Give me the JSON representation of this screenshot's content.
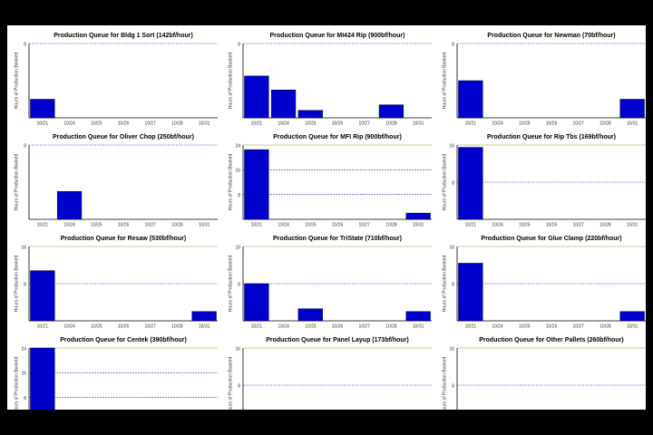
{
  "chart_data": [
    {
      "type": "bar",
      "title": "Production Queue for Bldg 1 Sort (142bf/hour)",
      "y_label": "Hours of Production Booked",
      "categories": [
        "10/21",
        "10/24",
        "10/25",
        "10/26",
        "10/27",
        "10/28",
        "10/31"
      ],
      "values": [
        2,
        0,
        0,
        0,
        0,
        0,
        0
      ],
      "color": "#0000cc",
      "ylim": [
        0,
        8
      ],
      "yticks": [
        8
      ]
    },
    {
      "type": "bar",
      "title": "Production Queue for MI424 Rip (900bf/hour)",
      "y_label": "Hours of Production Booked",
      "categories": [
        "10/21",
        "10/24",
        "10/25",
        "10/26",
        "10/27",
        "10/28",
        "10/31"
      ],
      "values": [
        4.5,
        3,
        0.8,
        0,
        0,
        1.4,
        0
      ],
      "color": "#0000cc",
      "ylim": [
        0,
        8
      ],
      "yticks": [
        8
      ]
    },
    {
      "type": "bar",
      "title": "Production Queue for Newman (70bf/hour)",
      "y_label": "Hours of Production Booked",
      "categories": [
        "10/21",
        "10/24",
        "10/25",
        "10/26",
        "10/27",
        "10/28",
        "10/31"
      ],
      "values": [
        4,
        0,
        0,
        0,
        0,
        0,
        2
      ],
      "color": "#0000cc",
      "ylim": [
        0,
        8
      ],
      "yticks": [
        8
      ]
    },
    {
      "type": "bar",
      "title": "Production Queue for Oliver Chop (250bf/hour)",
      "y_label": "Hours of Production Booked",
      "categories": [
        "10/21",
        "10/24",
        "10/25",
        "10/26",
        "10/27",
        "10/28",
        "10/31"
      ],
      "values": [
        0,
        3,
        0,
        0,
        0,
        0,
        0
      ],
      "color": "#0000cc",
      "ylim": [
        0,
        8
      ],
      "yticks": [
        8
      ]
    },
    {
      "type": "bar",
      "title": "Production Queue for MFI Rip (900bf/hour)",
      "y_label": "Hours of Production Booked",
      "categories": [
        "10/21",
        "10/24",
        "10/25",
        "10/26",
        "10/27",
        "10/28",
        "10/31"
      ],
      "values": [
        22.5,
        0,
        0,
        0,
        0,
        0,
        2
      ],
      "color": "#0000cc",
      "ylim": [
        0,
        24
      ],
      "yticks": [
        24,
        16,
        8
      ]
    },
    {
      "type": "bar",
      "title": "Production Queue for Rip Tbs (169bf/hour)",
      "y_label": "Hours of Production Booked",
      "categories": [
        "10/21",
        "10/24",
        "10/25",
        "10/26",
        "10/27",
        "10/28",
        "10/31"
      ],
      "values": [
        15.5,
        0,
        0,
        0,
        0,
        0,
        0
      ],
      "color": "#0000cc",
      "ylim": [
        0,
        16
      ],
      "yticks": [
        16,
        8
      ]
    },
    {
      "type": "bar",
      "title": "Production Queue for Resaw (530bf/hour)",
      "y_label": "Hours of Production Booked",
      "categories": [
        "10/21",
        "10/24",
        "10/25",
        "10/26",
        "10/27",
        "10/28",
        "10/31"
      ],
      "values": [
        10.8,
        0,
        0,
        0,
        0,
        0,
        2
      ],
      "color": "#0000cc",
      "ylim": [
        0,
        16
      ],
      "yticks": [
        16,
        8
      ]
    },
    {
      "type": "bar",
      "title": "Production Queue for TriState (710bf/hour)",
      "y_label": "Hours of Production Booked",
      "categories": [
        "10/21",
        "10/24",
        "10/25",
        "10/26",
        "10/27",
        "10/28",
        "10/31"
      ],
      "values": [
        8,
        0,
        2.6,
        0,
        0,
        0,
        2
      ],
      "color": "#0000cc",
      "ylim": [
        0,
        16
      ],
      "yticks": [
        16,
        8
      ]
    },
    {
      "type": "bar",
      "title": "Production Queue for Glue Clamp (220bf/hour)",
      "y_label": "Hours of Production Booked",
      "categories": [
        "10/21",
        "10/24",
        "10/25",
        "10/26",
        "10/27",
        "10/28",
        "10/31"
      ],
      "values": [
        12.4,
        0,
        0,
        0,
        0,
        0,
        2
      ],
      "color": "#0000cc",
      "ylim": [
        0,
        16
      ],
      "yticks": [
        16,
        8
      ]
    },
    {
      "type": "bar",
      "title": "Production Queue for Centek (390bf/hour)",
      "y_label": "Hours of Production Booked",
      "categories": [
        null
      ],
      "values": [
        24
      ],
      "color": "#0000cc",
      "ylim": [
        0,
        24
      ],
      "yticks": [
        24,
        16,
        8
      ]
    },
    {
      "type": "bar",
      "title": "Production Queue for Panel Layup (173bf/hour)",
      "y_label": "Hours of Production Booked",
      "color": "#0000cc",
      "ylim": [
        0,
        16
      ],
      "yticks": [
        16,
        8
      ]
    },
    {
      "type": "bar",
      "title": "Production Queue for Other Pallets (260bf/hour)",
      "y_label": "Hours of Production Booked",
      "color": "#0000cc",
      "ylim": [
        0,
        16
      ],
      "yticks": [
        16,
        8
      ]
    }
  ]
}
